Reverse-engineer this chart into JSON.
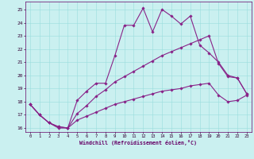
{
  "xlabel": "Windchill (Refroidissement éolien,°C)",
  "bg_color": "#caf0f0",
  "line_color": "#882288",
  "grid_color": "#99dddd",
  "xlim": [
    -0.5,
    23.5
  ],
  "ylim": [
    15.7,
    25.6
  ],
  "yticks": [
    16,
    17,
    18,
    19,
    20,
    21,
    22,
    23,
    24,
    25
  ],
  "xticks": [
    0,
    1,
    2,
    3,
    4,
    5,
    6,
    7,
    8,
    9,
    10,
    11,
    12,
    13,
    14,
    15,
    16,
    17,
    18,
    19,
    20,
    21,
    22,
    23
  ],
  "curve1_x": [
    0,
    1,
    2,
    3,
    4,
    5,
    6,
    7,
    8,
    9,
    10,
    11,
    12,
    13,
    14,
    15,
    16,
    17,
    18,
    19,
    20,
    21,
    22,
    23
  ],
  "curve1_y": [
    17.8,
    17.0,
    16.4,
    16.0,
    16.0,
    18.1,
    18.8,
    19.4,
    19.4,
    21.5,
    23.8,
    23.8,
    25.1,
    23.3,
    25.0,
    24.5,
    23.9,
    24.5,
    22.3,
    21.7,
    21.0,
    20.0,
    19.8,
    18.6
  ],
  "curve2_x": [
    0,
    1,
    2,
    3,
    4,
    5,
    6,
    7,
    8,
    9,
    10,
    11,
    12,
    13,
    14,
    15,
    16,
    17,
    18,
    19,
    20,
    21,
    22,
    23
  ],
  "curve2_y": [
    17.8,
    17.0,
    16.4,
    16.1,
    16.0,
    17.1,
    17.7,
    18.4,
    18.9,
    19.5,
    19.9,
    20.3,
    20.7,
    21.1,
    21.5,
    21.8,
    22.1,
    22.4,
    22.7,
    23.0,
    20.9,
    19.9,
    19.8,
    18.6
  ],
  "curve3_x": [
    0,
    1,
    2,
    3,
    4,
    5,
    6,
    7,
    8,
    9,
    10,
    11,
    12,
    13,
    14,
    15,
    16,
    17,
    18,
    19,
    20,
    21,
    22,
    23
  ],
  "curve3_y": [
    17.8,
    17.0,
    16.4,
    16.1,
    16.0,
    16.6,
    16.9,
    17.2,
    17.5,
    17.8,
    18.0,
    18.2,
    18.4,
    18.6,
    18.8,
    18.9,
    19.0,
    19.2,
    19.3,
    19.4,
    18.5,
    18.0,
    18.1,
    18.5
  ],
  "xlabel_color": "#660066",
  "tick_color": "#330033",
  "spine_color": "#660066"
}
